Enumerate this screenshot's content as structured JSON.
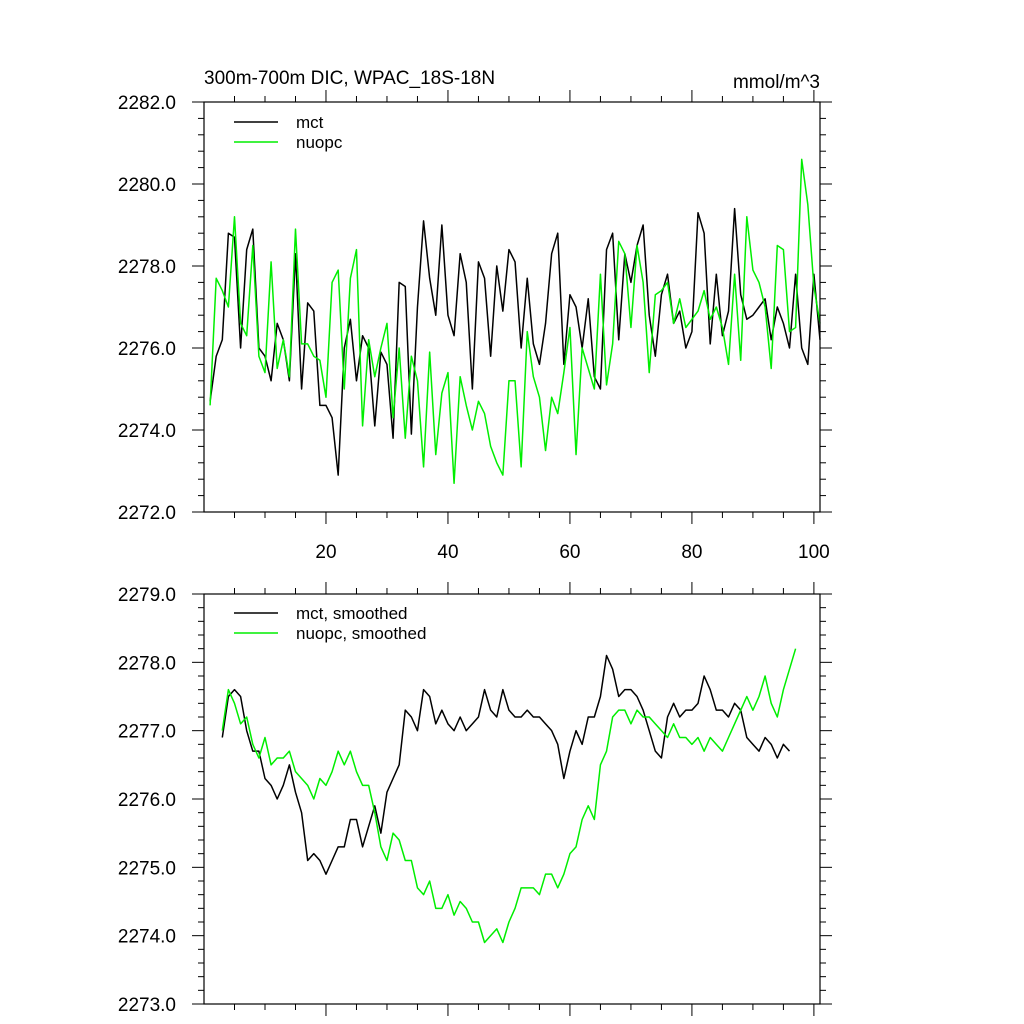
{
  "chart_data": [
    {
      "type": "line",
      "title": "300m-700m DIC, WPAC_18S-18N",
      "units": "mmol/m^3",
      "xlabel": "",
      "ylabel": "",
      "xlim": [
        0,
        101
      ],
      "ylim": [
        2272.0,
        2282.0
      ],
      "x_ticks": [
        20,
        40,
        60,
        80,
        100
      ],
      "y_ticks": [
        "2272.0",
        "2274.0",
        "2276.0",
        "2278.0",
        "2280.0",
        "2282.0"
      ],
      "legend_position": "top-left",
      "series": [
        {
          "name": "mct",
          "color": "#000000",
          "x_start": 1,
          "values": [
            2274.7,
            2275.8,
            2276.2,
            2278.8,
            2278.7,
            2276.0,
            2278.4,
            2278.9,
            2276.0,
            2275.8,
            2275.2,
            2276.6,
            2276.2,
            2275.2,
            2278.3,
            2275.0,
            2277.1,
            2276.9,
            2274.6,
            2274.6,
            2274.3,
            2272.9,
            2276.0,
            2276.7,
            2275.2,
            2276.3,
            2276.0,
            2274.1,
            2275.9,
            2275.6,
            2273.8,
            2277.6,
            2277.5,
            2273.9,
            2277.0,
            2279.1,
            2277.7,
            2276.8,
            2279.0,
            2276.8,
            2276.3,
            2278.3,
            2277.6,
            2275.0,
            2278.1,
            2277.7,
            2275.8,
            2278.0,
            2276.9,
            2278.4,
            2278.1,
            2276.0,
            2277.7,
            2276.1,
            2275.6,
            2276.6,
            2278.3,
            2278.8,
            2275.6,
            2277.3,
            2277.0,
            2276.0,
            2277.2,
            2275.3,
            2275.0,
            2278.4,
            2278.8,
            2276.2,
            2278.3,
            2277.6,
            2278.5,
            2279.0,
            2276.8,
            2275.8,
            2277.3,
            2277.8,
            2276.6,
            2276.9,
            2276.0,
            2276.4,
            2279.3,
            2278.8,
            2276.1,
            2277.8,
            2276.3,
            2276.9,
            2279.4,
            2277.3,
            2276.7,
            2276.8,
            2277.0,
            2277.2,
            2276.2,
            2277.0,
            2276.6,
            2276.0,
            2277.8,
            2276.0,
            2275.6,
            2277.8,
            2276.2
          ]
        },
        {
          "name": "nuopc",
          "color": "#00ee00",
          "x_start": 1,
          "values": [
            2274.6,
            2277.7,
            2277.4,
            2277.0,
            2279.2,
            2276.6,
            2276.3,
            2278.5,
            2275.8,
            2275.4,
            2278.1,
            2275.5,
            2276.2,
            2275.3,
            2278.9,
            2276.1,
            2276.1,
            2275.8,
            2275.7,
            2274.8,
            2277.6,
            2277.9,
            2275.0,
            2277.7,
            2278.4,
            2274.1,
            2276.2,
            2275.3,
            2276.0,
            2276.6,
            2274.3,
            2276.0,
            2273.8,
            2275.8,
            2275.2,
            2273.1,
            2275.9,
            2273.4,
            2274.9,
            2275.4,
            2272.7,
            2275.3,
            2274.6,
            2274.0,
            2274.7,
            2274.4,
            2273.6,
            2273.2,
            2272.9,
            2275.2,
            2275.2,
            2273.1,
            2276.4,
            2275.3,
            2274.8,
            2273.5,
            2274.8,
            2274.4,
            2275.4,
            2276.5,
            2273.4,
            2276.0,
            2275.5,
            2275.0,
            2277.8,
            2275.1,
            2276.1,
            2278.6,
            2278.3,
            2276.5,
            2278.5,
            2277.6,
            2275.4,
            2277.3,
            2277.4,
            2277.6,
            2276.6,
            2277.2,
            2276.5,
            2276.7,
            2276.9,
            2277.4,
            2276.7,
            2277.0,
            2276.5,
            2275.6,
            2277.8,
            2275.7,
            2279.2,
            2277.9,
            2277.6,
            2277.0,
            2275.5,
            2278.5,
            2278.4,
            2276.4,
            2276.5,
            2280.6,
            2279.5,
            2277.5,
            2276.6
          ]
        }
      ]
    },
    {
      "type": "line",
      "title": "",
      "xlabel": "",
      "ylabel": "",
      "xlim": [
        0,
        101
      ],
      "ylim": [
        2273.0,
        2279.0
      ],
      "x_ticks": [
        20,
        40,
        60,
        80,
        100
      ],
      "y_ticks": [
        "2273.0",
        "2274.0",
        "2275.0",
        "2276.0",
        "2277.0",
        "2278.0",
        "2279.0"
      ],
      "legend_position": "top-left",
      "series": [
        {
          "name": "mct, smoothed",
          "color": "#000000",
          "x_start": 3,
          "values": [
            2276.9,
            2277.5,
            2277.6,
            2277.5,
            2277.0,
            2276.7,
            2276.7,
            2276.3,
            2276.2,
            2276.0,
            2276.2,
            2276.5,
            2276.1,
            2275.8,
            2275.1,
            2275.2,
            2275.1,
            2274.9,
            2275.1,
            2275.3,
            2275.3,
            2275.7,
            2275.7,
            2275.3,
            2275.6,
            2275.9,
            2275.5,
            2276.1,
            2276.3,
            2276.5,
            2277.3,
            2277.2,
            2277.0,
            2277.6,
            2277.5,
            2277.1,
            2277.3,
            2277.1,
            2277.0,
            2277.2,
            2277.0,
            2277.1,
            2277.2,
            2277.6,
            2277.3,
            2277.2,
            2277.6,
            2277.3,
            2277.2,
            2277.2,
            2277.3,
            2277.2,
            2277.2,
            2277.1,
            2277.0,
            2276.8,
            2276.3,
            2276.7,
            2277.0,
            2276.8,
            2277.2,
            2277.2,
            2277.5,
            2278.1,
            2277.9,
            2277.5,
            2277.6,
            2277.6,
            2277.5,
            2277.3,
            2277.0,
            2276.7,
            2276.6,
            2277.2,
            2277.4,
            2277.2,
            2277.3,
            2277.3,
            2277.4,
            2277.8,
            2277.6,
            2277.3,
            2277.3,
            2277.2,
            2277.4,
            2277.3,
            2276.9,
            2276.8,
            2276.7,
            2276.9,
            2276.8,
            2276.6,
            2276.8,
            2276.7
          ]
        },
        {
          "name": "nuopc, smoothed",
          "color": "#00ee00",
          "x_start": 3,
          "values": [
            2277.0,
            2277.6,
            2277.4,
            2277.1,
            2277.2,
            2276.8,
            2276.6,
            2276.9,
            2276.5,
            2276.6,
            2276.6,
            2276.7,
            2276.4,
            2276.3,
            2276.2,
            2276.0,
            2276.3,
            2276.2,
            2276.4,
            2276.7,
            2276.5,
            2276.7,
            2276.4,
            2276.2,
            2276.2,
            2275.8,
            2275.3,
            2275.1,
            2275.5,
            2275.4,
            2275.1,
            2275.1,
            2274.7,
            2274.6,
            2274.8,
            2274.4,
            2274.4,
            2274.6,
            2274.3,
            2274.5,
            2274.4,
            2274.2,
            2274.2,
            2273.9,
            2274.0,
            2274.1,
            2273.9,
            2274.2,
            2274.4,
            2274.7,
            2274.7,
            2274.7,
            2274.6,
            2274.9,
            2274.9,
            2274.7,
            2274.9,
            2275.2,
            2275.3,
            2275.7,
            2275.9,
            2275.7,
            2276.5,
            2276.7,
            2277.2,
            2277.3,
            2277.3,
            2277.1,
            2277.3,
            2277.2,
            2277.2,
            2277.1,
            2277.0,
            2276.9,
            2277.1,
            2276.9,
            2276.9,
            2276.8,
            2276.9,
            2276.7,
            2276.9,
            2276.8,
            2276.7,
            2276.9,
            2277.1,
            2277.3,
            2277.5,
            2277.3,
            2277.5,
            2277.8,
            2277.4,
            2277.2,
            2277.6,
            2277.9,
            2278.2
          ]
        }
      ]
    }
  ]
}
